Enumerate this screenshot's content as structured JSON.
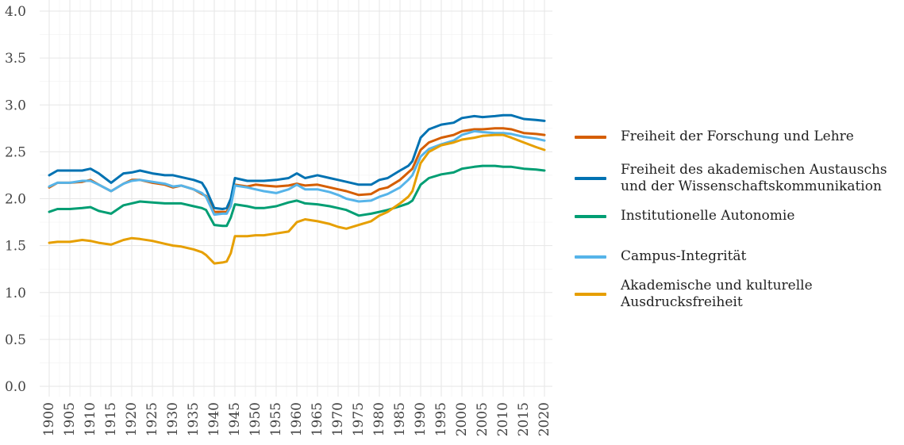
{
  "chart_data": {
    "type": "line",
    "title": "",
    "xlabel": "",
    "ylabel": "",
    "xlim": [
      1900,
      2020
    ],
    "ylim": [
      0,
      4
    ],
    "yticks": [
      "0.0",
      "0.5",
      "1.0",
      "1.5",
      "2.0",
      "2.5",
      "3.0",
      "3.5",
      "4.0"
    ],
    "xticks": [
      "1900",
      "1905",
      "1910",
      "1915",
      "1920",
      "1925",
      "1930",
      "1935",
      "1940",
      "1945",
      "1950",
      "1955",
      "1960",
      "1965",
      "1970",
      "1975",
      "1980",
      "1985",
      "1990",
      "1995",
      "2000",
      "2005",
      "2010",
      "2015",
      "2020"
    ],
    "grid": true,
    "legend_position": "right",
    "x": [
      1900,
      1902,
      1905,
      1908,
      1910,
      1912,
      1915,
      1918,
      1920,
      1922,
      1925,
      1928,
      1930,
      1932,
      1935,
      1937,
      1938,
      1940,
      1942,
      1943,
      1944,
      1945,
      1948,
      1950,
      1952,
      1955,
      1958,
      1960,
      1962,
      1965,
      1968,
      1970,
      1972,
      1975,
      1978,
      1980,
      1982,
      1985,
      1987,
      1988,
      1990,
      1992,
      1995,
      1998,
      2000,
      2003,
      2005,
      2008,
      2010,
      2012,
      2015,
      2018,
      2020
    ],
    "series": [
      {
        "name": "Freiheit der Forschung und Lehre",
        "color": "#D55E00",
        "values": [
          2.12,
          2.17,
          2.17,
          2.18,
          2.2,
          2.15,
          2.08,
          2.16,
          2.2,
          2.2,
          2.17,
          2.15,
          2.12,
          2.14,
          2.1,
          2.05,
          2.03,
          1.86,
          1.86,
          1.86,
          1.95,
          2.15,
          2.13,
          2.15,
          2.14,
          2.13,
          2.14,
          2.16,
          2.14,
          2.15,
          2.12,
          2.1,
          2.08,
          2.04,
          2.05,
          2.1,
          2.12,
          2.2,
          2.28,
          2.32,
          2.52,
          2.6,
          2.65,
          2.68,
          2.72,
          2.74,
          2.74,
          2.75,
          2.75,
          2.74,
          2.7,
          2.69,
          2.68
        ]
      },
      {
        "name": "Freiheit des akademischen Austauschs und der Wissenschaftskommunikation",
        "color": "#0072B2",
        "values": [
          2.25,
          2.3,
          2.3,
          2.3,
          2.32,
          2.27,
          2.17,
          2.27,
          2.28,
          2.3,
          2.27,
          2.25,
          2.25,
          2.23,
          2.2,
          2.17,
          2.1,
          1.9,
          1.89,
          1.9,
          2.0,
          2.22,
          2.19,
          2.19,
          2.19,
          2.2,
          2.22,
          2.27,
          2.22,
          2.25,
          2.22,
          2.2,
          2.18,
          2.15,
          2.15,
          2.2,
          2.22,
          2.3,
          2.35,
          2.4,
          2.65,
          2.74,
          2.79,
          2.81,
          2.86,
          2.88,
          2.87,
          2.88,
          2.89,
          2.89,
          2.85,
          2.84,
          2.83
        ]
      },
      {
        "name": "Institutionelle Autonomie",
        "color": "#009E73",
        "values": [
          1.86,
          1.89,
          1.89,
          1.9,
          1.91,
          1.87,
          1.84,
          1.93,
          1.95,
          1.97,
          1.96,
          1.95,
          1.95,
          1.95,
          1.92,
          1.9,
          1.88,
          1.72,
          1.71,
          1.71,
          1.8,
          1.94,
          1.92,
          1.9,
          1.9,
          1.92,
          1.96,
          1.98,
          1.95,
          1.94,
          1.92,
          1.9,
          1.88,
          1.82,
          1.84,
          1.86,
          1.88,
          1.92,
          1.95,
          1.98,
          2.15,
          2.22,
          2.26,
          2.28,
          2.32,
          2.34,
          2.35,
          2.35,
          2.34,
          2.34,
          2.32,
          2.31,
          2.3
        ]
      },
      {
        "name": "Campus-Integrität",
        "color": "#56B4E9",
        "values": [
          2.13,
          2.17,
          2.17,
          2.19,
          2.19,
          2.15,
          2.08,
          2.16,
          2.19,
          2.2,
          2.18,
          2.16,
          2.13,
          2.14,
          2.1,
          2.06,
          2.02,
          1.83,
          1.84,
          1.84,
          1.92,
          2.14,
          2.12,
          2.1,
          2.08,
          2.06,
          2.1,
          2.15,
          2.1,
          2.1,
          2.07,
          2.04,
          2.0,
          1.97,
          1.98,
          2.02,
          2.05,
          2.12,
          2.2,
          2.25,
          2.45,
          2.53,
          2.58,
          2.62,
          2.68,
          2.72,
          2.71,
          2.7,
          2.7,
          2.69,
          2.66,
          2.64,
          2.62
        ]
      },
      {
        "name": "Akademische und kulturelle Ausdrucksfreiheit",
        "color": "#E69F00",
        "values": [
          1.53,
          1.54,
          1.54,
          1.56,
          1.55,
          1.53,
          1.51,
          1.56,
          1.58,
          1.57,
          1.55,
          1.52,
          1.5,
          1.49,
          1.46,
          1.43,
          1.4,
          1.31,
          1.32,
          1.33,
          1.42,
          1.6,
          1.6,
          1.61,
          1.61,
          1.63,
          1.65,
          1.75,
          1.78,
          1.76,
          1.73,
          1.7,
          1.68,
          1.72,
          1.76,
          1.82,
          1.86,
          1.95,
          2.02,
          2.08,
          2.38,
          2.5,
          2.57,
          2.6,
          2.63,
          2.65,
          2.67,
          2.68,
          2.68,
          2.65,
          2.6,
          2.55,
          2.52
        ]
      }
    ]
  }
}
